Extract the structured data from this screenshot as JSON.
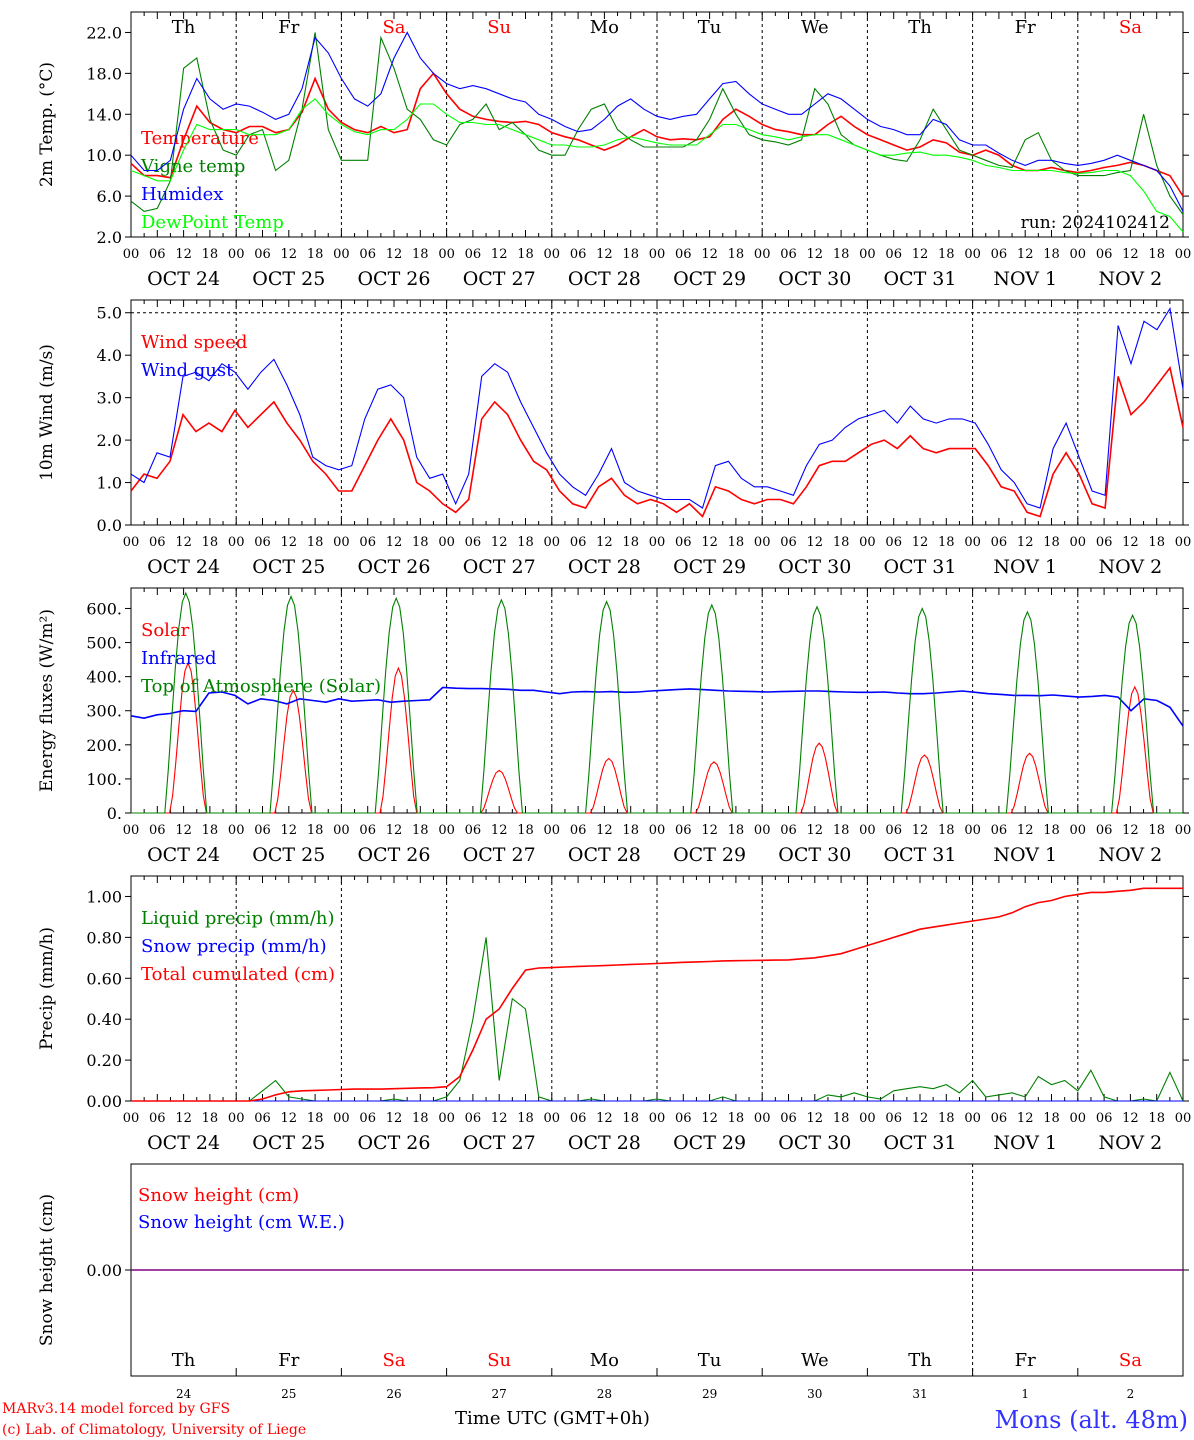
{
  "chart_data": [
    {
      "type": "line",
      "ylabel": "2m Temp. (°C)",
      "ylim": [
        2,
        24
      ],
      "yticks": [
        "22.0",
        "18.0",
        "14.0",
        "10.0",
        "6.0",
        "2.0"
      ],
      "yticks_values": [
        22,
        18,
        14,
        10,
        6,
        2
      ],
      "days_top": [
        "Th",
        "Fr",
        "Sa",
        "Su",
        "Mo",
        "Tu",
        "We",
        "Th",
        "Fr",
        "Sa"
      ],
      "day_labels": [
        "OCT 24",
        "OCT 25",
        "OCT 26",
        "OCT 27",
        "OCT 28",
        "OCT 29",
        "OCT 30",
        "OCT 31",
        "NOV  1",
        "NOV  2"
      ],
      "run_label": "run: 2024102412",
      "series": [
        {
          "name": "Temperature",
          "color": "#ff0000",
          "values": [
            9.2,
            8.0,
            8.0,
            7.8,
            11.5,
            14.8,
            13.2,
            12.5,
            12.2,
            12.8,
            12.8,
            12.2,
            12.5,
            14.2,
            17.5,
            14.5,
            13.2,
            12.5,
            12.2,
            12.8,
            12.2,
            12.5,
            16.5,
            18.0,
            16.0,
            14.5,
            13.8,
            13.5,
            13.3,
            13.2,
            13.3,
            13.0,
            12.2,
            11.8,
            11.5,
            11.0,
            10.5,
            11.0,
            11.8,
            12.5,
            11.8,
            11.5,
            11.6,
            11.5,
            11.8,
            13.5,
            14.5,
            13.8,
            13.0,
            12.5,
            12.3,
            12.0,
            12.0,
            13.0,
            13.8,
            12.8,
            12.0,
            11.5,
            11.0,
            10.5,
            10.8,
            11.5,
            11.2,
            10.3,
            10.0,
            10.5,
            10.0,
            9.0,
            8.5,
            8.5,
            8.8,
            8.5,
            8.3,
            8.5,
            8.8,
            9.0,
            9.3,
            9.0,
            8.5,
            8.0,
            6.0
          ]
        },
        {
          "name": "Vigne temp",
          "color": "#008000",
          "values": [
            5.5,
            4.5,
            4.8,
            7.5,
            18.5,
            19.5,
            13.5,
            10.5,
            10.0,
            12.0,
            12.5,
            8.5,
            9.5,
            14.5,
            22.0,
            12.5,
            9.5,
            9.5,
            9.5,
            21.5,
            18.5,
            14.5,
            13.5,
            11.5,
            11.0,
            13.0,
            13.5,
            15.0,
            12.5,
            13.2,
            12.0,
            10.5,
            10.0,
            10.0,
            12.5,
            14.5,
            15.0,
            12.5,
            11.5,
            10.8,
            10.8,
            10.8,
            10.8,
            11.5,
            13.5,
            16.5,
            14.0,
            12.0,
            11.5,
            11.3,
            11.0,
            11.5,
            16.5,
            15.0,
            12.0,
            11.0,
            10.5,
            10.0,
            9.6,
            9.4,
            11.5,
            14.5,
            12.5,
            10.5,
            10.0,
            9.5,
            9.0,
            8.8,
            11.5,
            12.2,
            9.5,
            8.5,
            8.0,
            8.0,
            8.0,
            8.3,
            8.5,
            14.0,
            9.0,
            6.0,
            4.2
          ]
        },
        {
          "name": "Humidex",
          "color": "#0000ff",
          "values": [
            10.0,
            8.5,
            8.5,
            9.5,
            14.5,
            17.5,
            15.5,
            14.5,
            15.0,
            14.8,
            14.2,
            13.5,
            14.0,
            16.5,
            21.5,
            20.0,
            17.5,
            15.5,
            14.8,
            16.0,
            19.5,
            22.0,
            19.5,
            18.0,
            17.0,
            16.5,
            16.8,
            16.5,
            16.0,
            15.5,
            15.2,
            14.0,
            13.5,
            12.8,
            12.3,
            12.5,
            13.5,
            14.8,
            15.5,
            14.5,
            13.8,
            13.5,
            13.8,
            14.0,
            15.5,
            17.0,
            17.2,
            16.0,
            15.0,
            14.5,
            14.0,
            14.0,
            15.0,
            16.0,
            15.5,
            14.5,
            13.5,
            12.8,
            12.5,
            12.0,
            12.0,
            13.5,
            13.0,
            11.5,
            11.0,
            11.0,
            10.2,
            9.5,
            9.0,
            9.5,
            9.5,
            9.2,
            9.0,
            9.2,
            9.5,
            10.0,
            9.5,
            9.0,
            8.5,
            7.0,
            4.5
          ]
        },
        {
          "name": "DewPoint Temp",
          "color": "#00ff00",
          "values": [
            8.5,
            8.0,
            7.5,
            7.5,
            10.5,
            13.0,
            12.5,
            12.5,
            12.5,
            12.0,
            12.0,
            12.0,
            12.5,
            14.5,
            15.5,
            14.0,
            13.0,
            12.3,
            12.0,
            12.5,
            12.5,
            13.5,
            15.0,
            15.0,
            14.0,
            13.2,
            13.2,
            13.0,
            13.0,
            12.5,
            12.0,
            11.5,
            11.0,
            11.0,
            10.8,
            10.8,
            11.0,
            11.5,
            11.8,
            11.5,
            11.2,
            11.0,
            11.0,
            11.0,
            12.0,
            13.0,
            13.0,
            12.5,
            12.0,
            11.8,
            11.5,
            11.8,
            12.0,
            12.0,
            11.5,
            11.0,
            10.5,
            10.0,
            10.0,
            10.2,
            10.3,
            10.0,
            10.0,
            9.8,
            9.5,
            9.0,
            8.8,
            8.5,
            8.5,
            8.5,
            8.5,
            8.3,
            8.2,
            8.3,
            8.5,
            8.5,
            8.0,
            6.5,
            4.5,
            4.0,
            2.5
          ]
        }
      ]
    },
    {
      "type": "line",
      "ylabel": "10m Wind (m/s)",
      "ylim": [
        0,
        5.3
      ],
      "yticks": [
        "5.0",
        "4.0",
        "3.0",
        "2.0",
        "1.0",
        "0.0"
      ],
      "yticks_values": [
        5,
        4,
        3,
        2,
        1,
        0
      ],
      "day_labels": [
        "OCT 24",
        "OCT 25",
        "OCT 26",
        "OCT 27",
        "OCT 28",
        "OCT 29",
        "OCT 30",
        "OCT 31",
        "NOV  1",
        "NOV  2"
      ],
      "series": [
        {
          "name": "Wind speed",
          "color": "#ff0000",
          "values": [
            0.8,
            1.2,
            1.1,
            1.5,
            2.6,
            2.2,
            2.4,
            2.2,
            2.7,
            2.3,
            2.6,
            2.9,
            2.4,
            2.0,
            1.5,
            1.2,
            0.8,
            0.8,
            1.4,
            2.0,
            2.5,
            2.0,
            1.0,
            0.8,
            0.5,
            0.3,
            0.6,
            2.5,
            2.9,
            2.6,
            2.0,
            1.5,
            1.3,
            0.8,
            0.5,
            0.4,
            0.9,
            1.1,
            0.7,
            0.5,
            0.6,
            0.5,
            0.3,
            0.5,
            0.2,
            0.9,
            0.8,
            0.6,
            0.5,
            0.6,
            0.6,
            0.5,
            0.9,
            1.4,
            1.5,
            1.5,
            1.7,
            1.9,
            2.0,
            1.8,
            2.1,
            1.8,
            1.7,
            1.8,
            1.8,
            1.8,
            1.4,
            0.9,
            0.8,
            0.3,
            0.2,
            1.2,
            1.7,
            1.2,
            0.5,
            0.4,
            3.5,
            2.6,
            2.9,
            3.3,
            3.7,
            2.3
          ]
        },
        {
          "name": "Wind gust",
          "color": "#0000ff",
          "values": [
            1.2,
            1.0,
            1.7,
            1.6,
            3.5,
            3.6,
            3.4,
            3.8,
            3.6,
            3.2,
            3.6,
            3.9,
            3.3,
            2.6,
            1.6,
            1.4,
            1.3,
            1.4,
            2.5,
            3.2,
            3.3,
            3.0,
            1.6,
            1.1,
            1.2,
            0.5,
            1.2,
            3.5,
            3.8,
            3.6,
            2.9,
            2.3,
            1.7,
            1.2,
            0.9,
            0.7,
            1.2,
            1.8,
            1.0,
            0.8,
            0.7,
            0.6,
            0.6,
            0.6,
            0.4,
            1.4,
            1.5,
            1.1,
            0.9,
            0.9,
            0.8,
            0.7,
            1.4,
            1.9,
            2.0,
            2.3,
            2.5,
            2.6,
            2.7,
            2.4,
            2.8,
            2.5,
            2.4,
            2.5,
            2.5,
            2.4,
            1.9,
            1.3,
            1.0,
            0.5,
            0.4,
            1.8,
            2.4,
            1.6,
            0.8,
            0.7,
            4.7,
            3.8,
            4.8,
            4.6,
            5.1,
            3.2
          ]
        }
      ]
    },
    {
      "type": "line",
      "ylabel": "Energy fluxes (W/m²)",
      "ylim": [
        0,
        660
      ],
      "yticks": [
        "600.",
        "500.",
        "400.",
        "300.",
        "200.",
        "100.",
        "0."
      ],
      "yticks_values": [
        600,
        500,
        400,
        300,
        200,
        100,
        0
      ],
      "day_labels": [
        "OCT 24",
        "OCT 25",
        "OCT 26",
        "OCT 27",
        "OCT 28",
        "OCT 29",
        "OCT 30",
        "OCT 31",
        "NOV  1",
        "NOV  2"
      ],
      "series": [
        {
          "name": "Solar",
          "color": "#ff0000",
          "peaks": [
            440,
            360,
            425,
            125,
            160,
            150,
            205,
            170,
            175,
            370
          ],
          "peak_hours": [
            13,
            13,
            13,
            12,
            13,
            13,
            13,
            13,
            13,
            13
          ]
        },
        {
          "name": "Infrared",
          "color": "#0000ff",
          "values": [
            285,
            278,
            288,
            292,
            300,
            298,
            352,
            355,
            345,
            320,
            335,
            330,
            320,
            335,
            330,
            325,
            335,
            328,
            330,
            332,
            325,
            328,
            330,
            332,
            368,
            366,
            365,
            365,
            364,
            363,
            360,
            360,
            355,
            350,
            355,
            356,
            355,
            356,
            354,
            355,
            358,
            360,
            362,
            364,
            362,
            360,
            358,
            357,
            356,
            355,
            356,
            357,
            358,
            358,
            356,
            355,
            354,
            354,
            355,
            352,
            350,
            350,
            352,
            355,
            358,
            354,
            350,
            348,
            345,
            345,
            344,
            346,
            343,
            340,
            342,
            345,
            340,
            300,
            335,
            330,
            310,
            255
          ]
        },
        {
          "name": "Top of Atmosphere (Solar)",
          "color": "#008000",
          "peaks": [
            645,
            635,
            630,
            625,
            620,
            610,
            605,
            600,
            590,
            580
          ]
        }
      ]
    },
    {
      "type": "line",
      "ylabel": "Precip (mm/h)",
      "ylim": [
        0,
        1.1
      ],
      "yticks": [
        "1.00",
        "0.80",
        "0.60",
        "0.40",
        "0.20",
        "0.00"
      ],
      "yticks_values": [
        1.0,
        0.8,
        0.6,
        0.4,
        0.2,
        0.0
      ],
      "day_labels": [
        "OCT 24",
        "OCT 25",
        "OCT 26",
        "OCT 27",
        "OCT 28",
        "OCT 29",
        "OCT 30",
        "OCT 31",
        "NOV  1",
        "NOV  2"
      ],
      "series": [
        {
          "name": "Liquid precip (mm/h)",
          "color": "#008000",
          "values": [
            0,
            0,
            0,
            0,
            0,
            0,
            0,
            0,
            0,
            0,
            0.05,
            0.1,
            0.02,
            0.01,
            0,
            0,
            0,
            0,
            0,
            0,
            0.01,
            0,
            0,
            0,
            0.02,
            0.1,
            0.4,
            0.8,
            0.1,
            0.5,
            0.45,
            0.02,
            0,
            0,
            0,
            0.01,
            0,
            0,
            0,
            0,
            0.01,
            0,
            0,
            0,
            0,
            0.02,
            0,
            0,
            0,
            0,
            0,
            0,
            0,
            0.03,
            0.02,
            0.04,
            0.02,
            0.01,
            0.05,
            0.06,
            0.07,
            0.06,
            0.08,
            0.04,
            0.1,
            0.02,
            0.03,
            0.04,
            0.02,
            0.12,
            0.08,
            0.1,
            0.05,
            0.15,
            0.02,
            0,
            0,
            0.01,
            0,
            0.14,
            0
          ]
        },
        {
          "name": "Snow precip (mm/h)",
          "color": "#0000ff",
          "values": [
            0,
            0,
            0,
            0,
            0,
            0,
            0,
            0,
            0,
            0,
            0,
            0,
            0,
            0,
            0,
            0,
            0,
            0,
            0,
            0,
            0,
            0,
            0,
            0,
            0,
            0,
            0,
            0,
            0,
            0,
            0,
            0,
            0,
            0,
            0,
            0,
            0,
            0,
            0,
            0,
            0,
            0,
            0,
            0,
            0,
            0,
            0,
            0,
            0,
            0,
            0,
            0,
            0,
            0,
            0,
            0,
            0,
            0,
            0,
            0,
            0,
            0,
            0,
            0,
            0,
            0,
            0,
            0,
            0,
            0,
            0,
            0,
            0,
            0,
            0,
            0,
            0,
            0,
            0,
            0,
            0
          ]
        },
        {
          "name": "Total cumulated (cm)",
          "color": "#ff0000",
          "values": [
            0,
            0,
            0,
            0,
            0,
            0,
            0,
            0,
            0,
            0,
            0.01,
            0.03,
            0.045,
            0.05,
            0.052,
            0.054,
            0.056,
            0.058,
            0.058,
            0.058,
            0.06,
            0.062,
            0.064,
            0.065,
            0.07,
            0.12,
            0.25,
            0.4,
            0.45,
            0.55,
            0.64,
            0.65,
            0.652,
            0.655,
            0.658,
            0.66,
            0.662,
            0.665,
            0.668,
            0.67,
            0.672,
            0.675,
            0.678,
            0.68,
            0.682,
            0.685,
            0.686,
            0.687,
            0.688,
            0.689,
            0.69,
            0.695,
            0.7,
            0.71,
            0.72,
            0.74,
            0.76,
            0.78,
            0.8,
            0.82,
            0.84,
            0.85,
            0.86,
            0.87,
            0.88,
            0.89,
            0.9,
            0.92,
            0.95,
            0.97,
            0.98,
            1.0,
            1.01,
            1.02,
            1.02,
            1.025,
            1.03,
            1.04,
            1.04,
            1.04,
            1.04
          ]
        }
      ]
    },
    {
      "type": "line",
      "ylabel": "Snow height (cm)",
      "yticks": [
        "0.00"
      ],
      "days_bottom": [
        "Th",
        "Fr",
        "Sa",
        "Su",
        "Mo",
        "Tu",
        "We",
        "Th",
        "Fr",
        "Sa"
      ],
      "date_numbers": [
        "24",
        "25",
        "26",
        "27",
        "28",
        "29",
        "30",
        "31",
        "1",
        "2"
      ],
      "series": [
        {
          "name": "Snow height (cm)",
          "color": "#ff0000",
          "values": [
            0,
            0
          ]
        },
        {
          "name": "Snow height (cm W.E.)",
          "color": "#0000ff",
          "values": [
            0,
            0
          ]
        }
      ]
    }
  ],
  "hour_ticks": [
    "00",
    "06",
    "12",
    "18"
  ],
  "last_hour_tick": "00",
  "footer": {
    "model": "MARv3.14 model forced by GFS",
    "lab": "(c) Lab. of Climatology, University of Liege",
    "time_axis": "Time UTC (GMT+0h)",
    "station": "Mons (alt. 48m)"
  },
  "colors": {
    "weekend": "#ff0000",
    "weekday": "#000000",
    "axis": "#000000"
  }
}
